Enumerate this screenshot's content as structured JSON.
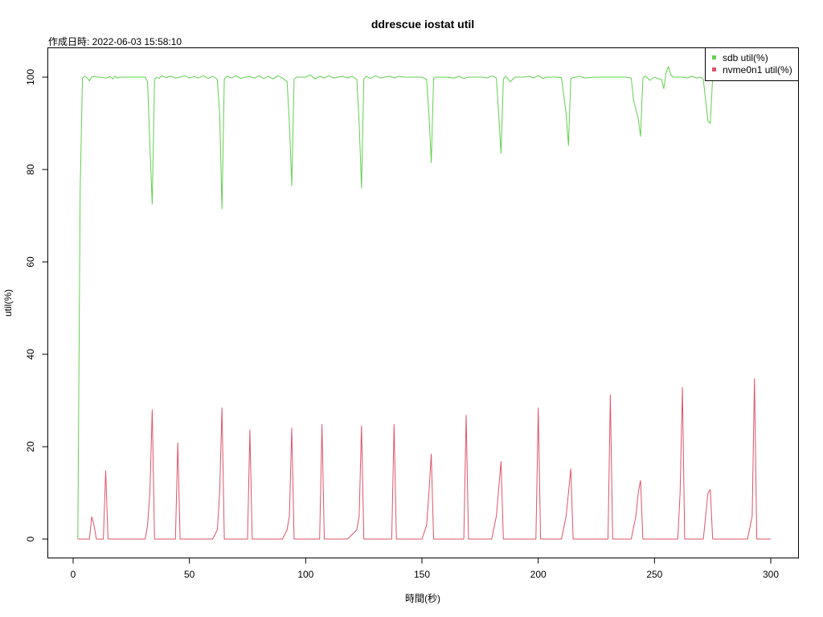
{
  "chart_data": {
    "type": "line",
    "title": "ddrescue iostat util",
    "subtitle": "作成日時: 2022-06-03 15:58:10",
    "xlabel": "時間(秒)",
    "ylabel": "util(%)",
    "xlim": [
      1,
      300
    ],
    "ylim": [
      0,
      102
    ],
    "xticks": [
      0,
      50,
      100,
      150,
      200,
      250,
      300
    ],
    "yticks": [
      0,
      20,
      40,
      60,
      80,
      100
    ],
    "grid": false,
    "legend": "top-right",
    "series": [
      {
        "name": "sdb util(%)",
        "color": "#61D04F",
        "points": [
          [
            2,
            0
          ],
          [
            3,
            75
          ],
          [
            4,
            99.8
          ],
          [
            5,
            100.2
          ],
          [
            6,
            99.8
          ],
          [
            7,
            99.2
          ],
          [
            8,
            100
          ],
          [
            9,
            100.2
          ],
          [
            10,
            100
          ],
          [
            12,
            100
          ],
          [
            14,
            99.8
          ],
          [
            16,
            100.1
          ],
          [
            17,
            99.6
          ],
          [
            18,
            100.2
          ],
          [
            19,
            99.8
          ],
          [
            20,
            100
          ],
          [
            24,
            100
          ],
          [
            28,
            100
          ],
          [
            31,
            100
          ],
          [
            32,
            99
          ],
          [
            33,
            85
          ],
          [
            34,
            72.5
          ],
          [
            35,
            99.5
          ],
          [
            36,
            100
          ],
          [
            37,
            99.7
          ],
          [
            38,
            100.3
          ],
          [
            40,
            99.9
          ],
          [
            42,
            100.2
          ],
          [
            44,
            99.8
          ],
          [
            46,
            100
          ],
          [
            48,
            100.3
          ],
          [
            50,
            99.8
          ],
          [
            52,
            100.1
          ],
          [
            54,
            99.8
          ],
          [
            56,
            100.3
          ],
          [
            58,
            99.7
          ],
          [
            60,
            100.2
          ],
          [
            62,
            99.5
          ],
          [
            63,
            92
          ],
          [
            64,
            71.5
          ],
          [
            65,
            99.6
          ],
          [
            66,
            100.2
          ],
          [
            68,
            99.8
          ],
          [
            70,
            100.3
          ],
          [
            72,
            99.7
          ],
          [
            74,
            100
          ],
          [
            76,
            100.1
          ],
          [
            78,
            99.8
          ],
          [
            80,
            100.3
          ],
          [
            82,
            99.7
          ],
          [
            84,
            100.2
          ],
          [
            86,
            99.6
          ],
          [
            88,
            100.3
          ],
          [
            90,
            99.8
          ],
          [
            92,
            99
          ],
          [
            93,
            90
          ],
          [
            94,
            76.5
          ],
          [
            95,
            99.5
          ],
          [
            96,
            100
          ],
          [
            100,
            100
          ],
          [
            102,
            100.5
          ],
          [
            104,
            99.6
          ],
          [
            106,
            100.2
          ],
          [
            108,
            99.8
          ],
          [
            110,
            100.3
          ],
          [
            112,
            99.8
          ],
          [
            114,
            100
          ],
          [
            116,
            100.2
          ],
          [
            118,
            99.8
          ],
          [
            120,
            100.2
          ],
          [
            122,
            99.5
          ],
          [
            123,
            90
          ],
          [
            124,
            76
          ],
          [
            125,
            99.6
          ],
          [
            126,
            100.2
          ],
          [
            128,
            99.7
          ],
          [
            130,
            100.3
          ],
          [
            132,
            99.8
          ],
          [
            134,
            100
          ],
          [
            136,
            100.2
          ],
          [
            138,
            99.8
          ],
          [
            140,
            100.2
          ],
          [
            142,
            100
          ],
          [
            146,
            100
          ],
          [
            150,
            100
          ],
          [
            152,
            99.5
          ],
          [
            153,
            92
          ],
          [
            154,
            81.5
          ],
          [
            155,
            99.7
          ],
          [
            156,
            100
          ],
          [
            160,
            100
          ],
          [
            164,
            99.8
          ],
          [
            166,
            100.2
          ],
          [
            168,
            99.7
          ],
          [
            170,
            100
          ],
          [
            172,
            100
          ],
          [
            174,
            100
          ],
          [
            176,
            100
          ],
          [
            178,
            99.8
          ],
          [
            180,
            100.3
          ],
          [
            182,
            99.8
          ],
          [
            183,
            92
          ],
          [
            184,
            83.5
          ],
          [
            185,
            99.6
          ],
          [
            186,
            100.2
          ],
          [
            188,
            99
          ],
          [
            190,
            100
          ],
          [
            192,
            100
          ],
          [
            194,
            100
          ],
          [
            196,
            100.2
          ],
          [
            198,
            99.8
          ],
          [
            200,
            100.3
          ],
          [
            202,
            99.7
          ],
          [
            204,
            100
          ],
          [
            206,
            100
          ],
          [
            208,
            100
          ],
          [
            210,
            99.9
          ],
          [
            212,
            92
          ],
          [
            213,
            85.2
          ],
          [
            214,
            99.7
          ],
          [
            216,
            100
          ],
          [
            218,
            100.2
          ],
          [
            220,
            99.8
          ],
          [
            224,
            100
          ],
          [
            228,
            100
          ],
          [
            230,
            100
          ],
          [
            232,
            100
          ],
          [
            234,
            100
          ],
          [
            236,
            100
          ],
          [
            238,
            100
          ],
          [
            240,
            99.8
          ],
          [
            241,
            95
          ],
          [
            243,
            91
          ],
          [
            244,
            87.2
          ],
          [
            245,
            99.7
          ],
          [
            246,
            100.3
          ],
          [
            248,
            99.3
          ],
          [
            250,
            100
          ],
          [
            252,
            99.6
          ],
          [
            253,
            99.5
          ],
          [
            254,
            97.5
          ],
          [
            255,
            101
          ],
          [
            256,
            102.3
          ],
          [
            257,
            100.5
          ],
          [
            258,
            100
          ],
          [
            260,
            100
          ],
          [
            262,
            100
          ],
          [
            264,
            99.8
          ],
          [
            266,
            100.2
          ],
          [
            268,
            99.8
          ],
          [
            270,
            100
          ],
          [
            271,
            99.5
          ],
          [
            272,
            95
          ],
          [
            273,
            90.5
          ],
          [
            274,
            90
          ],
          [
            275,
            100
          ]
        ]
      },
      {
        "name": "nvme0n1 util(%)",
        "color": "#DF536B",
        "points": [
          [
            2,
            0
          ],
          [
            4,
            0
          ],
          [
            6,
            0
          ],
          [
            7,
            0
          ],
          [
            8,
            4.8
          ],
          [
            9,
            3
          ],
          [
            10,
            0
          ],
          [
            12,
            0
          ],
          [
            13,
            0
          ],
          [
            14,
            14.8
          ],
          [
            15,
            0
          ],
          [
            20,
            0
          ],
          [
            25,
            0
          ],
          [
            30,
            0
          ],
          [
            31,
            0
          ],
          [
            32,
            3
          ],
          [
            33,
            10
          ],
          [
            34,
            28
          ],
          [
            35,
            0
          ],
          [
            40,
            0
          ],
          [
            44,
            0
          ],
          [
            45,
            20.8
          ],
          [
            46,
            0
          ],
          [
            50,
            0
          ],
          [
            55,
            0
          ],
          [
            60,
            0
          ],
          [
            62,
            2
          ],
          [
            63,
            10
          ],
          [
            64,
            28.4
          ],
          [
            65,
            0
          ],
          [
            70,
            0
          ],
          [
            75,
            0
          ],
          [
            76,
            23.6
          ],
          [
            77,
            0
          ],
          [
            80,
            0
          ],
          [
            85,
            0
          ],
          [
            90,
            0
          ],
          [
            92,
            2
          ],
          [
            93,
            5
          ],
          [
            94,
            24
          ],
          [
            95,
            0
          ],
          [
            100,
            0
          ],
          [
            106,
            0
          ],
          [
            107,
            24.8
          ],
          [
            108,
            0
          ],
          [
            112,
            0
          ],
          [
            118,
            0
          ],
          [
            122,
            2
          ],
          [
            123,
            5
          ],
          [
            124,
            24.5
          ],
          [
            125,
            0
          ],
          [
            130,
            0
          ],
          [
            136,
            0
          ],
          [
            137,
            0
          ],
          [
            138,
            24.8
          ],
          [
            139,
            0
          ],
          [
            144,
            0
          ],
          [
            150,
            0
          ],
          [
            152,
            3
          ],
          [
            153,
            10
          ],
          [
            154,
            18.4
          ],
          [
            155,
            0
          ],
          [
            160,
            0
          ],
          [
            168,
            0
          ],
          [
            169,
            26.8
          ],
          [
            170,
            0
          ],
          [
            175,
            0
          ],
          [
            180,
            0
          ],
          [
            182,
            5
          ],
          [
            184,
            16.8
          ],
          [
            185,
            0
          ],
          [
            190,
            0
          ],
          [
            198,
            0
          ],
          [
            199,
            0
          ],
          [
            200,
            28.4
          ],
          [
            201,
            0
          ],
          [
            205,
            0
          ],
          [
            210,
            0
          ],
          [
            212,
            5
          ],
          [
            213,
            10
          ],
          [
            214,
            15.2
          ],
          [
            215,
            0
          ],
          [
            220,
            0
          ],
          [
            230,
            0
          ],
          [
            231,
            31.2
          ],
          [
            232,
            0
          ],
          [
            236,
            0
          ],
          [
            240,
            0
          ],
          [
            242,
            5
          ],
          [
            243,
            10
          ],
          [
            244,
            12.7
          ],
          [
            245,
            0
          ],
          [
            250,
            0
          ],
          [
            255,
            0
          ],
          [
            260,
            0
          ],
          [
            261,
            10
          ],
          [
            262,
            32.8
          ],
          [
            263,
            0
          ],
          [
            268,
            0
          ],
          [
            271,
            0
          ],
          [
            272,
            5
          ],
          [
            273,
            10
          ],
          [
            274,
            10.7
          ],
          [
            275,
            0
          ],
          [
            280,
            0
          ],
          [
            285,
            0
          ],
          [
            290,
            0
          ],
          [
            292,
            5
          ],
          [
            293,
            34.7
          ],
          [
            294,
            0
          ],
          [
            300,
            0
          ]
        ]
      }
    ]
  }
}
